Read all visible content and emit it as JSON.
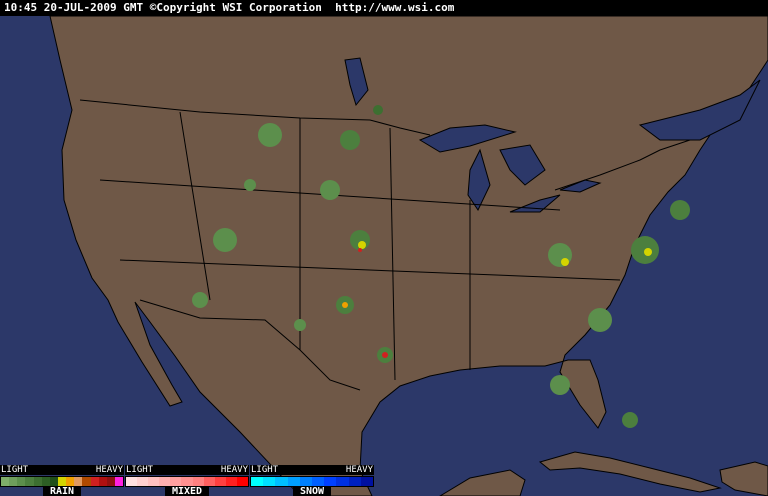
{
  "header": {
    "timestamp": "10:45 20-JUL-2009 GMT",
    "copyright": "©Copyright WSI Corporation",
    "url": "http://www.wsi.com"
  },
  "colors": {
    "ocean": "#2c3869",
    "land": "#6f5847",
    "borders": "#000000"
  },
  "legend": [
    {
      "name": "RAIN",
      "light": "LIGHT",
      "heavy": "HEAVY",
      "colors": [
        "#7fae6a",
        "#6e9e5c",
        "#5c8f4c",
        "#4c7f3e",
        "#3d6f31",
        "#2d5f24",
        "#1f4f18",
        "#d4d400",
        "#f0a000",
        "#e09a60",
        "#b04a00",
        "#d02020",
        "#b01010",
        "#901010",
        "#ff20e0"
      ]
    },
    {
      "name": "MIXED",
      "light": "LIGHT",
      "heavy": "HEAVY",
      "colors": [
        "#ffe0e0",
        "#ffd0d0",
        "#ffc0c0",
        "#ffb0b0",
        "#ffa0a0",
        "#ff9090",
        "#ff8080",
        "#ff6060",
        "#ff4040",
        "#ff2020",
        "#ff0000"
      ]
    },
    {
      "name": "SNOW",
      "light": "LIGHT",
      "heavy": "HEAVY",
      "colors": [
        "#00ffff",
        "#00e0ff",
        "#00c0ff",
        "#00a0ff",
        "#0080ff",
        "#0060ff",
        "#0040ff",
        "#0030e0",
        "#0020c0",
        "#0010a0"
      ]
    }
  ]
}
